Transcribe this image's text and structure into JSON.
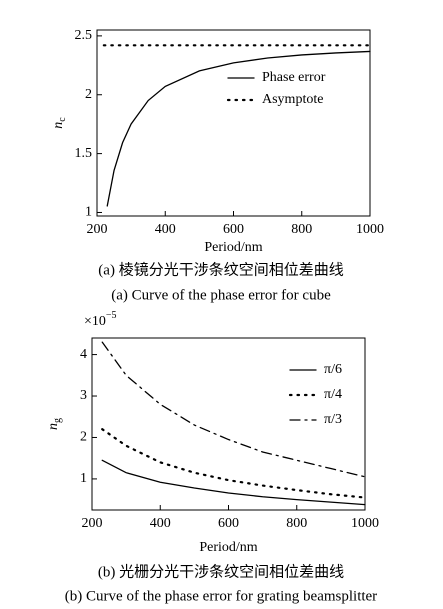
{
  "chart_data": [
    {
      "type": "line",
      "x_label": "Period/nm",
      "y_label": "n",
      "y_label_sub": "c",
      "caption_cn": "(a) 棱镜分光干涉条纹空间相位差曲线",
      "caption_en": "(a) Curve of the phase error for cube",
      "xlim": [
        200,
        1000
      ],
      "xticks": [
        200,
        400,
        600,
        800,
        1000
      ],
      "ylim": [
        0.97,
        2.55
      ],
      "yticks": [
        1,
        1.5,
        2,
        2.5
      ],
      "series": [
        {
          "name": "Phase error",
          "color": "#000000",
          "style": "solid",
          "x": [
            230,
            250,
            275,
            300,
            350,
            400,
            500,
            600,
            700,
            800,
            900,
            1000
          ],
          "values": [
            1.055,
            1.357,
            1.593,
            1.752,
            1.951,
            2.071,
            2.203,
            2.271,
            2.312,
            2.338,
            2.355,
            2.368
          ]
        },
        {
          "name": "Asymptote",
          "color": "#000000",
          "style": "dotted",
          "x": [
            220,
            1000
          ],
          "values": [
            2.42,
            2.42
          ]
        }
      ]
    },
    {
      "type": "line",
      "x_label": "Period/nm",
      "y_label": "n",
      "y_label_sub": "g",
      "scale_label": "×10",
      "scale_exponent": "−5",
      "caption_cn": "(b) 光栅分光干涉条纹空间相位差曲线",
      "caption_en": "(b) Curve of the phase error for grating beamsplitter",
      "xlim": [
        200,
        1000
      ],
      "xticks": [
        200,
        400,
        600,
        800,
        1000
      ],
      "ylim": [
        0.25,
        4.4
      ],
      "yticks": [
        1,
        2,
        3,
        4
      ],
      "series": [
        {
          "name": "π/6",
          "color": "#000000",
          "style": "solid",
          "x": [
            230,
            300,
            400,
            500,
            600,
            700,
            800,
            900,
            1000
          ],
          "values": [
            1.45,
            1.15,
            0.92,
            0.78,
            0.66,
            0.57,
            0.5,
            0.44,
            0.38
          ]
        },
        {
          "name": "π/4",
          "color": "#000000",
          "style": "dotted",
          "x": [
            230,
            300,
            400,
            500,
            600,
            700,
            800,
            900,
            1000
          ],
          "values": [
            2.2,
            1.8,
            1.4,
            1.15,
            0.97,
            0.84,
            0.73,
            0.63,
            0.55
          ]
        },
        {
          "name": "π/3",
          "color": "#000000",
          "style": "dashdot",
          "x": [
            230,
            300,
            400,
            500,
            600,
            700,
            800,
            900,
            1000
          ],
          "values": [
            4.3,
            3.5,
            2.8,
            2.3,
            1.95,
            1.65,
            1.45,
            1.25,
            1.05
          ]
        }
      ]
    }
  ]
}
